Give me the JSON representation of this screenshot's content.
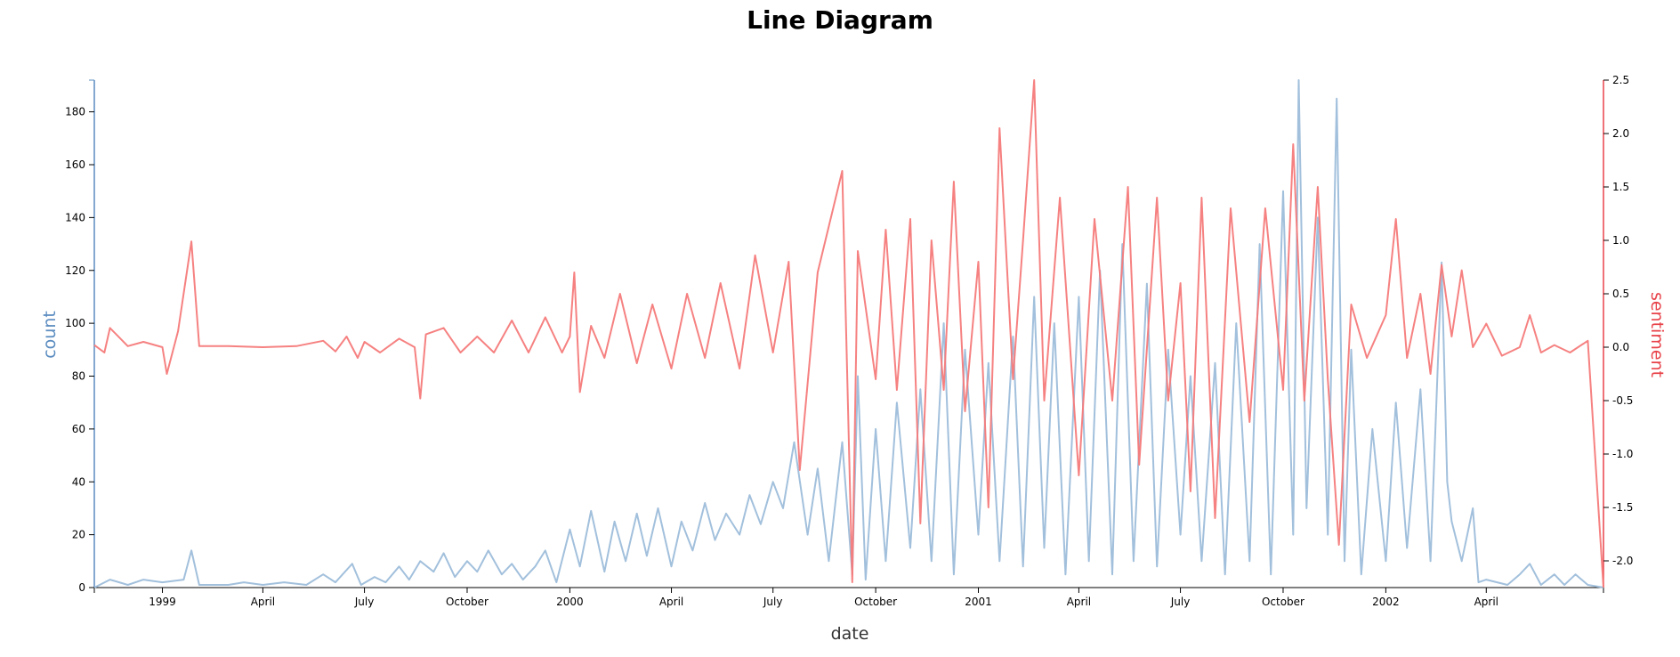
{
  "chart_data": {
    "type": "line",
    "title": "Line Diagram",
    "xlabel": "date",
    "ylabel_left": "count",
    "ylabel_right": "sentiment",
    "x_range": [
      "1998-11-01",
      "2002-07-15"
    ],
    "y_left_range": [
      0,
      192
    ],
    "y_right_range": [
      -2.25,
      2.5
    ],
    "x_ticks": [
      {
        "label": "1999",
        "date": "1999-01-01"
      },
      {
        "label": "April",
        "date": "1999-04-01"
      },
      {
        "label": "July",
        "date": "1999-07-01"
      },
      {
        "label": "October",
        "date": "1999-10-01"
      },
      {
        "label": "2000",
        "date": "2000-01-01"
      },
      {
        "label": "April",
        "date": "2000-04-01"
      },
      {
        "label": "July",
        "date": "2000-07-01"
      },
      {
        "label": "October",
        "date": "2000-10-01"
      },
      {
        "label": "2001",
        "date": "2001-01-01"
      },
      {
        "label": "April",
        "date": "2001-04-01"
      },
      {
        "label": "July",
        "date": "2001-07-01"
      },
      {
        "label": "October",
        "date": "2001-10-01"
      },
      {
        "label": "2002",
        "date": "2002-01-01"
      },
      {
        "label": "April",
        "date": "2002-04-01"
      }
    ],
    "y_left_ticks": [
      "0",
      "20",
      "40",
      "60",
      "80",
      "100",
      "120",
      "140",
      "160",
      "180"
    ],
    "y_right_ticks": [
      "-2.0",
      "-1.5",
      "-1.0",
      "-0.5",
      "0.0",
      "0.5",
      "1.0",
      "1.5",
      "2.0",
      "2.5"
    ],
    "colors": {
      "count": "#9dbdda",
      "sentiment": "#f57a7a",
      "left_axis": "#5b8cc0",
      "right_axis": "#e8434a"
    },
    "series": [
      {
        "axis": "left",
        "color": "#9dbdda",
        "points": [
          [
            "1998-11-01",
            0
          ],
          [
            "1998-11-15",
            3
          ],
          [
            "1998-12-01",
            1
          ],
          [
            "1998-12-15",
            3
          ],
          [
            "1999-01-01",
            2
          ],
          [
            "1999-01-20",
            3
          ],
          [
            "1999-01-27",
            14
          ],
          [
            "1999-02-03",
            1
          ],
          [
            "1999-03-01",
            1
          ],
          [
            "1999-03-15",
            2
          ],
          [
            "1999-04-01",
            1
          ],
          [
            "1999-04-20",
            2
          ],
          [
            "1999-05-10",
            1
          ],
          [
            "1999-05-25",
            5
          ],
          [
            "1999-06-05",
            2
          ],
          [
            "1999-06-20",
            9
          ],
          [
            "1999-06-28",
            1
          ],
          [
            "1999-07-10",
            4
          ],
          [
            "1999-07-20",
            2
          ],
          [
            "1999-08-01",
            8
          ],
          [
            "1999-08-10",
            3
          ],
          [
            "1999-08-20",
            10
          ],
          [
            "1999-09-01",
            6
          ],
          [
            "1999-09-10",
            13
          ],
          [
            "1999-09-20",
            4
          ],
          [
            "1999-10-01",
            10
          ],
          [
            "1999-10-10",
            6
          ],
          [
            "1999-10-20",
            14
          ],
          [
            "1999-11-01",
            5
          ],
          [
            "1999-11-10",
            9
          ],
          [
            "1999-11-20",
            3
          ],
          [
            "1999-12-01",
            8
          ],
          [
            "1999-12-10",
            14
          ],
          [
            "1999-12-20",
            2
          ],
          [
            "2000-01-01",
            22
          ],
          [
            "2000-01-10",
            8
          ],
          [
            "2000-01-20",
            29
          ],
          [
            "2000-02-01",
            6
          ],
          [
            "2000-02-10",
            25
          ],
          [
            "2000-02-20",
            10
          ],
          [
            "2000-03-01",
            28
          ],
          [
            "2000-03-10",
            12
          ],
          [
            "2000-03-20",
            30
          ],
          [
            "2000-04-01",
            8
          ],
          [
            "2000-04-10",
            25
          ],
          [
            "2000-04-20",
            14
          ],
          [
            "2000-05-01",
            32
          ],
          [
            "2000-05-10",
            18
          ],
          [
            "2000-05-20",
            28
          ],
          [
            "2000-06-01",
            20
          ],
          [
            "2000-06-10",
            35
          ],
          [
            "2000-06-20",
            24
          ],
          [
            "2000-07-01",
            40
          ],
          [
            "2000-07-10",
            30
          ],
          [
            "2000-07-20",
            55
          ],
          [
            "2000-08-01",
            20
          ],
          [
            "2000-08-10",
            45
          ],
          [
            "2000-08-20",
            10
          ],
          [
            "2000-09-01",
            55
          ],
          [
            "2000-09-10",
            5
          ],
          [
            "2000-09-15",
            80
          ],
          [
            "2000-09-22",
            3
          ],
          [
            "2000-10-01",
            60
          ],
          [
            "2000-10-10",
            10
          ],
          [
            "2000-10-20",
            70
          ],
          [
            "2000-11-01",
            15
          ],
          [
            "2000-11-10",
            75
          ],
          [
            "2000-11-20",
            10
          ],
          [
            "2000-12-01",
            100
          ],
          [
            "2000-12-10",
            5
          ],
          [
            "2000-12-20",
            90
          ],
          [
            "2001-01-01",
            20
          ],
          [
            "2001-01-10",
            85
          ],
          [
            "2001-01-20",
            10
          ],
          [
            "2001-02-01",
            95
          ],
          [
            "2001-02-10",
            8
          ],
          [
            "2001-02-20",
            110
          ],
          [
            "2001-03-01",
            15
          ],
          [
            "2001-03-10",
            100
          ],
          [
            "2001-03-20",
            5
          ],
          [
            "2001-04-01",
            110
          ],
          [
            "2001-04-10",
            10
          ],
          [
            "2001-04-20",
            120
          ],
          [
            "2001-05-01",
            5
          ],
          [
            "2001-05-10",
            130
          ],
          [
            "2001-05-20",
            10
          ],
          [
            "2001-06-01",
            115
          ],
          [
            "2001-06-10",
            8
          ],
          [
            "2001-06-20",
            90
          ],
          [
            "2001-07-01",
            20
          ],
          [
            "2001-07-10",
            80
          ],
          [
            "2001-07-20",
            10
          ],
          [
            "2001-08-01",
            85
          ],
          [
            "2001-08-10",
            5
          ],
          [
            "2001-08-20",
            100
          ],
          [
            "2001-09-01",
            10
          ],
          [
            "2001-09-10",
            130
          ],
          [
            "2001-09-20",
            5
          ],
          [
            "2001-10-01",
            150
          ],
          [
            "2001-10-10",
            20
          ],
          [
            "2001-10-15",
            192
          ],
          [
            "2001-10-22",
            30
          ],
          [
            "2001-11-01",
            140
          ],
          [
            "2001-11-10",
            20
          ],
          [
            "2001-11-18",
            185
          ],
          [
            "2001-11-25",
            10
          ],
          [
            "2001-12-01",
            90
          ],
          [
            "2001-12-10",
            5
          ],
          [
            "2001-12-20",
            60
          ],
          [
            "2002-01-01",
            10
          ],
          [
            "2002-01-10",
            70
          ],
          [
            "2002-01-20",
            15
          ],
          [
            "2002-02-01",
            75
          ],
          [
            "2002-02-10",
            10
          ],
          [
            "2002-02-20",
            123
          ],
          [
            "2002-02-25",
            40
          ],
          [
            "2002-03-01",
            25
          ],
          [
            "2002-03-10",
            10
          ],
          [
            "2002-03-20",
            30
          ],
          [
            "2002-03-25",
            2
          ],
          [
            "2002-04-01",
            3
          ],
          [
            "2002-04-20",
            1
          ],
          [
            "2002-05-01",
            5
          ],
          [
            "2002-05-10",
            9
          ],
          [
            "2002-05-20",
            1
          ],
          [
            "2002-06-01",
            5
          ],
          [
            "2002-06-10",
            1
          ],
          [
            "2002-06-20",
            5
          ],
          [
            "2002-07-01",
            1
          ],
          [
            "2002-07-15",
            0
          ]
        ]
      },
      {
        "axis": "right",
        "color": "#f57a7a",
        "points": [
          [
            "1998-11-01",
            0.02
          ],
          [
            "1998-11-10",
            -0.05
          ],
          [
            "1998-11-15",
            0.18
          ],
          [
            "1998-12-01",
            0.01
          ],
          [
            "1998-12-15",
            0.05
          ],
          [
            "1999-01-01",
            0.0
          ],
          [
            "1999-01-05",
            -0.25
          ],
          [
            "1999-01-15",
            0.15
          ],
          [
            "1999-01-27",
            0.99
          ],
          [
            "1999-02-03",
            0.01
          ],
          [
            "1999-03-01",
            0.01
          ],
          [
            "1999-04-01",
            0.0
          ],
          [
            "1999-05-01",
            0.01
          ],
          [
            "1999-05-25",
            0.06
          ],
          [
            "1999-06-05",
            -0.04
          ],
          [
            "1999-06-15",
            0.1
          ],
          [
            "1999-06-25",
            -0.1
          ],
          [
            "1999-07-01",
            0.05
          ],
          [
            "1999-07-15",
            -0.05
          ],
          [
            "1999-08-01",
            0.08
          ],
          [
            "1999-08-15",
            0.0
          ],
          [
            "1999-08-20",
            -0.48
          ],
          [
            "1999-08-25",
            0.12
          ],
          [
            "1999-09-10",
            0.18
          ],
          [
            "1999-09-25",
            -0.05
          ],
          [
            "1999-10-10",
            0.1
          ],
          [
            "1999-10-25",
            -0.05
          ],
          [
            "1999-11-10",
            0.25
          ],
          [
            "1999-11-25",
            -0.05
          ],
          [
            "1999-12-10",
            0.28
          ],
          [
            "1999-12-25",
            -0.05
          ],
          [
            "2000-01-01",
            0.1
          ],
          [
            "2000-01-05",
            0.7
          ],
          [
            "2000-01-10",
            -0.42
          ],
          [
            "2000-01-20",
            0.2
          ],
          [
            "2000-02-01",
            -0.1
          ],
          [
            "2000-02-15",
            0.5
          ],
          [
            "2000-03-01",
            -0.15
          ],
          [
            "2000-03-15",
            0.4
          ],
          [
            "2000-04-01",
            -0.2
          ],
          [
            "2000-04-15",
            0.5
          ],
          [
            "2000-05-01",
            -0.1
          ],
          [
            "2000-05-15",
            0.6
          ],
          [
            "2000-06-01",
            -0.2
          ],
          [
            "2000-06-15",
            0.86
          ],
          [
            "2000-07-01",
            -0.05
          ],
          [
            "2000-07-15",
            0.8
          ],
          [
            "2000-07-25",
            -1.15
          ],
          [
            "2000-08-10",
            0.7
          ],
          [
            "2000-09-01",
            1.65
          ],
          [
            "2000-09-10",
            -2.2
          ],
          [
            "2000-09-15",
            0.9
          ],
          [
            "2000-10-01",
            -0.3
          ],
          [
            "2000-10-10",
            1.1
          ],
          [
            "2000-10-20",
            -0.4
          ],
          [
            "2000-11-01",
            1.2
          ],
          [
            "2000-11-10",
            -1.65
          ],
          [
            "2000-11-20",
            1.0
          ],
          [
            "2000-12-01",
            -0.4
          ],
          [
            "2000-12-10",
            1.55
          ],
          [
            "2000-12-20",
            -0.6
          ],
          [
            "2001-01-01",
            0.8
          ],
          [
            "2001-01-10",
            -1.5
          ],
          [
            "2001-01-20",
            2.05
          ],
          [
            "2001-02-01",
            -0.3
          ],
          [
            "2001-02-10",
            1.0
          ],
          [
            "2001-02-20",
            2.5
          ],
          [
            "2001-03-01",
            -0.5
          ],
          [
            "2001-03-15",
            1.4
          ],
          [
            "2001-04-01",
            -1.2
          ],
          [
            "2001-04-15",
            1.2
          ],
          [
            "2001-05-01",
            -0.5
          ],
          [
            "2001-05-15",
            1.5
          ],
          [
            "2001-05-25",
            -1.1
          ],
          [
            "2001-06-10",
            1.4
          ],
          [
            "2001-06-20",
            -0.5
          ],
          [
            "2001-07-01",
            0.6
          ],
          [
            "2001-07-10",
            -1.35
          ],
          [
            "2001-07-20",
            1.4
          ],
          [
            "2001-08-01",
            -1.6
          ],
          [
            "2001-08-15",
            1.3
          ],
          [
            "2001-09-01",
            -0.7
          ],
          [
            "2001-09-15",
            1.3
          ],
          [
            "2001-10-01",
            -0.4
          ],
          [
            "2001-10-10",
            1.9
          ],
          [
            "2001-10-20",
            -0.5
          ],
          [
            "2001-11-01",
            1.5
          ],
          [
            "2001-11-10",
            -0.3
          ],
          [
            "2001-11-20",
            -1.85
          ],
          [
            "2001-12-01",
            0.4
          ],
          [
            "2001-12-15",
            -0.1
          ],
          [
            "2002-01-01",
            0.3
          ],
          [
            "2002-01-10",
            1.2
          ],
          [
            "2002-01-20",
            -0.1
          ],
          [
            "2002-02-01",
            0.5
          ],
          [
            "2002-02-10",
            -0.25
          ],
          [
            "2002-02-20",
            0.77
          ],
          [
            "2002-03-01",
            0.1
          ],
          [
            "2002-03-10",
            0.72
          ],
          [
            "2002-03-20",
            0.0
          ],
          [
            "2002-04-01",
            0.22
          ],
          [
            "2002-04-15",
            -0.08
          ],
          [
            "2002-05-01",
            0.0
          ],
          [
            "2002-05-10",
            0.3
          ],
          [
            "2002-05-20",
            -0.05
          ],
          [
            "2002-06-01",
            0.02
          ],
          [
            "2002-06-15",
            -0.05
          ],
          [
            "2002-07-01",
            0.06
          ],
          [
            "2002-07-15",
            -2.25
          ]
        ]
      }
    ]
  }
}
